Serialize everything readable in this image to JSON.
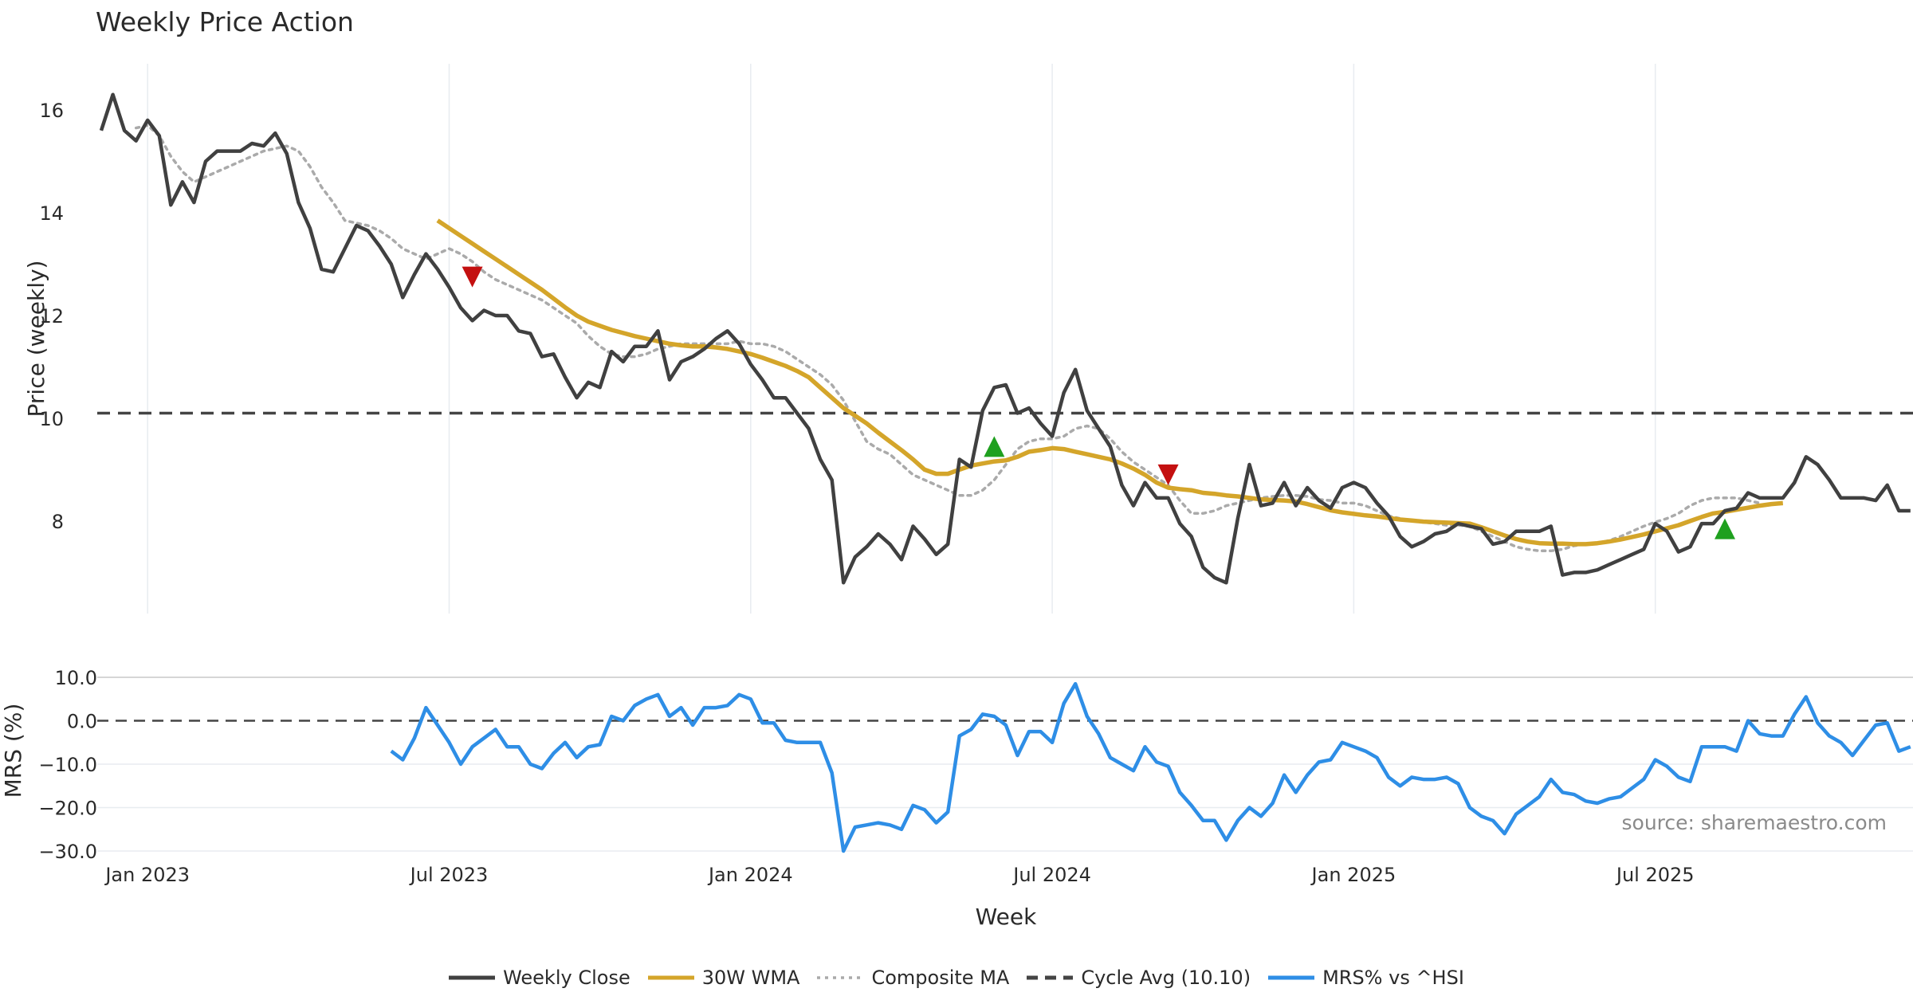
{
  "title": "Weekly Price Action",
  "source": "source: sharemaestro.com",
  "colors": {
    "close": "#404040",
    "wma": "#d4a52a",
    "composite": "#aaaaaa",
    "cycle": "#444444",
    "mrs": "#2e8ee6",
    "buy": "#1fa01f",
    "sell": "#c41010",
    "grid": "#e8ecf0"
  },
  "legend": [
    {
      "id": "close",
      "label": "Weekly Close",
      "style": "solid"
    },
    {
      "id": "wma",
      "label": "30W WMA",
      "style": "solid"
    },
    {
      "id": "composite",
      "label": "Composite MA",
      "style": "dotted"
    },
    {
      "id": "cycle",
      "label": "Cycle Avg (10.10)",
      "style": "dashed"
    },
    {
      "id": "mrs",
      "label": "MRS% vs ^HSI",
      "style": "solid"
    }
  ],
  "chart_data": [
    {
      "type": "line",
      "title": "Weekly Price Action",
      "xlabel": "Week",
      "ylabel": "Price (weekly)",
      "x_ticks": [
        "Jan 2023",
        "Jul 2023",
        "Jan 2024",
        "Jul 2024",
        "Jan 2025",
        "Jul 2025"
      ],
      "x_tick_index": [
        4,
        30,
        56,
        82,
        108,
        134
      ],
      "ylim": [
        6.2,
        16.9
      ],
      "y_ticks": [
        8,
        10,
        12,
        14,
        16
      ],
      "cycle_avg": 10.1,
      "series": [
        {
          "name": "Weekly Close",
          "start_index": 0,
          "values": [
            15.6,
            16.3,
            15.6,
            15.4,
            15.8,
            15.5,
            14.15,
            14.6,
            14.2,
            15.0,
            15.2,
            15.2,
            15.2,
            15.35,
            15.3,
            15.55,
            15.15,
            14.2,
            13.7,
            12.9,
            12.85,
            13.3,
            13.75,
            13.65,
            13.35,
            13.0,
            12.35,
            12.8,
            13.2,
            12.9,
            12.55,
            12.15,
            11.9,
            12.1,
            12.0,
            12.0,
            11.7,
            11.65,
            11.2,
            11.25,
            10.8,
            10.4,
            10.7,
            10.6,
            11.3,
            11.1,
            11.4,
            11.4,
            11.7,
            10.75,
            11.1,
            11.2,
            11.35,
            11.55,
            11.7,
            11.45,
            11.05,
            10.75,
            10.4,
            10.4,
            10.1,
            9.8,
            9.2,
            8.8,
            6.8,
            7.3,
            7.5,
            7.75,
            7.55,
            7.25,
            7.9,
            7.65,
            7.35,
            7.55,
            9.2,
            9.05,
            10.15,
            10.6,
            10.65,
            10.1,
            10.2,
            9.9,
            9.65,
            10.5,
            10.95,
            10.15,
            9.8,
            9.45,
            8.7,
            8.3,
            8.75,
            8.45,
            8.45,
            7.95,
            7.7,
            7.1,
            6.9,
            6.8,
            8.05,
            9.1,
            8.3,
            8.35,
            8.75,
            8.3,
            8.65,
            8.4,
            8.25,
            8.65,
            8.75,
            8.65,
            8.35,
            8.1,
            7.7,
            7.5,
            7.6,
            7.75,
            7.8,
            7.95,
            7.9,
            7.85,
            7.55,
            7.6,
            7.8,
            7.8,
            7.8,
            7.9,
            6.95,
            7.0,
            7.0,
            7.05,
            7.15,
            7.25,
            7.35,
            7.45,
            7.95,
            7.8,
            7.4,
            7.5,
            7.95,
            7.95,
            8.2,
            8.25,
            8.55,
            8.45,
            8.45,
            8.45,
            8.75,
            9.25,
            9.1,
            8.8,
            8.45,
            8.45,
            8.45,
            8.4,
            8.7,
            8.2,
            8.2
          ]
        },
        {
          "name": "30W WMA",
          "start_index": 29,
          "values": [
            13.85,
            13.7,
            13.55,
            13.4,
            13.25,
            13.1,
            12.95,
            12.8,
            12.65,
            12.5,
            12.33,
            12.16,
            12.0,
            11.88,
            11.8,
            11.72,
            11.66,
            11.6,
            11.55,
            11.5,
            11.45,
            11.42,
            11.4,
            11.4,
            11.38,
            11.35,
            11.3,
            11.25,
            11.18,
            11.1,
            11.02,
            10.92,
            10.8,
            10.6,
            10.4,
            10.2,
            10.05,
            9.9,
            9.72,
            9.55,
            9.38,
            9.2,
            9.0,
            8.92,
            8.92,
            9.0,
            9.08,
            9.12,
            9.16,
            9.18,
            9.25,
            9.35,
            9.38,
            9.42,
            9.4,
            9.35,
            9.3,
            9.25,
            9.2,
            9.12,
            9.02,
            8.9,
            8.75,
            8.65,
            8.62,
            8.6,
            8.55,
            8.53,
            8.5,
            8.48,
            8.45,
            8.42,
            8.41,
            8.4,
            8.38,
            8.33,
            8.27,
            8.21,
            8.17,
            8.14,
            8.11,
            8.09,
            8.06,
            8.03,
            8.01,
            7.99,
            7.98,
            7.97,
            7.96,
            7.95,
            7.88,
            7.8,
            7.72,
            7.65,
            7.6,
            7.57,
            7.56,
            7.56,
            7.55,
            7.55,
            7.57,
            7.6,
            7.64,
            7.69,
            7.74,
            7.8,
            7.86,
            7.92,
            8.0,
            8.08,
            8.15,
            8.18,
            8.22,
            8.26,
            8.3,
            8.33,
            8.35
          ]
        },
        {
          "name": "Composite MA",
          "start_index": 3,
          "values": [
            15.65,
            15.7,
            15.5,
            15.1,
            14.8,
            14.6,
            14.7,
            14.8,
            14.9,
            15.0,
            15.1,
            15.2,
            15.25,
            15.3,
            15.2,
            14.9,
            14.5,
            14.2,
            13.85,
            13.8,
            13.75,
            13.65,
            13.5,
            13.3,
            13.2,
            13.1,
            13.2,
            13.3,
            13.2,
            13.05,
            12.85,
            12.7,
            12.6,
            12.5,
            12.4,
            12.3,
            12.15,
            12.0,
            11.85,
            11.6,
            11.4,
            11.25,
            11.2,
            11.2,
            11.25,
            11.35,
            11.4,
            11.45,
            11.45,
            11.45,
            11.45,
            11.45,
            11.5,
            11.45,
            11.45,
            11.4,
            11.3,
            11.15,
            11.0,
            10.85,
            10.65,
            10.35,
            9.95,
            9.55,
            9.4,
            9.3,
            9.1,
            8.9,
            8.8,
            8.7,
            8.6,
            8.5,
            8.5,
            8.6,
            8.8,
            9.1,
            9.4,
            9.55,
            9.6,
            9.6,
            9.65,
            9.8,
            9.85,
            9.8,
            9.6,
            9.35,
            9.15,
            9.0,
            8.85,
            8.7,
            8.4,
            8.15,
            8.15,
            8.2,
            8.3,
            8.35,
            8.4,
            8.45,
            8.48,
            8.5,
            8.5,
            8.48,
            8.42,
            8.4,
            8.35,
            8.35,
            8.3,
            8.2,
            8.1,
            8.05,
            8.0,
            7.98,
            7.95,
            7.92,
            7.92,
            7.9,
            7.8,
            7.7,
            7.6,
            7.5,
            7.45,
            7.42,
            7.42,
            7.45,
            7.52,
            7.55,
            7.57,
            7.62,
            7.7,
            7.8,
            7.9,
            7.98,
            8.05,
            8.15,
            8.3,
            8.4,
            8.45,
            8.45,
            8.45,
            8.4,
            8.35
          ]
        }
      ],
      "signals": [
        {
          "type": "sell",
          "index": 32,
          "value": 12.75
        },
        {
          "type": "buy",
          "index": 77,
          "value": 9.45
        },
        {
          "type": "sell",
          "index": 92,
          "value": 8.9
        },
        {
          "type": "buy",
          "index": 140,
          "value": 7.85
        }
      ]
    },
    {
      "type": "line",
      "title": "",
      "xlabel": "Week",
      "ylabel": "MRS (%)",
      "ylim": [
        -30,
        10
      ],
      "y_ticks": [
        10.0,
        0.0,
        -10.0,
        -20.0,
        -30.0
      ],
      "y_tick_labels": [
        "10.0",
        "0.0",
        "−10.0",
        "−20.0",
        "−30.0"
      ],
      "zero_line": 0,
      "series": [
        {
          "name": "MRS% vs ^HSI",
          "start_index": 25,
          "values": [
            -7.0,
            -9.0,
            -4.0,
            3.0,
            -1.0,
            -5.0,
            -10.0,
            -6.0,
            -4.0,
            -2.0,
            -6.0,
            -6.0,
            -10.0,
            -11.0,
            -7.5,
            -5.0,
            -8.5,
            -6.0,
            -5.5,
            1.0,
            0.0,
            3.5,
            5.0,
            6.0,
            1.0,
            3.0,
            -1.0,
            3.0,
            3.0,
            3.5,
            6.0,
            5.0,
            -0.5,
            -0.5,
            -4.5,
            -5.0,
            -5.0,
            -5.0,
            -12.0,
            -30.0,
            -24.5,
            -24.0,
            -23.5,
            -24.0,
            -25.0,
            -19.5,
            -20.5,
            -23.5,
            -21.0,
            -3.5,
            -2.0,
            1.5,
            1.0,
            -1.0,
            -8.0,
            -2.5,
            -2.5,
            -5.0,
            4.0,
            8.5,
            1.0,
            -3.0,
            -8.5,
            -10.0,
            -11.5,
            -6.0,
            -9.5,
            -10.5,
            -16.5,
            -19.5,
            -23.0,
            -23.0,
            -27.5,
            -23.0,
            -20.0,
            -22.0,
            -19.0,
            -12.5,
            -16.5,
            -12.5,
            -9.5,
            -9.0,
            -5.0,
            -6.0,
            -7.0,
            -8.5,
            -13.0,
            -15.0,
            -13.0,
            -13.5,
            -13.5,
            -13.0,
            -14.5,
            -20.0,
            -22.0,
            -23.0,
            -26.0,
            -21.5,
            -19.5,
            -17.5,
            -13.5,
            -16.5,
            -17.0,
            -18.5,
            -19.0,
            -18.0,
            -17.5,
            -15.5,
            -13.5,
            -9.0,
            -10.5,
            -13.0,
            -14.0,
            -6.0,
            -6.0,
            -6.0,
            -7.0,
            0.0,
            -3.0,
            -3.5,
            -3.5,
            1.5,
            5.5,
            -0.5,
            -3.5,
            -5.0,
            -8.0,
            -4.5,
            -1.0,
            -0.5,
            -7.0,
            -6.0
          ]
        }
      ]
    }
  ]
}
